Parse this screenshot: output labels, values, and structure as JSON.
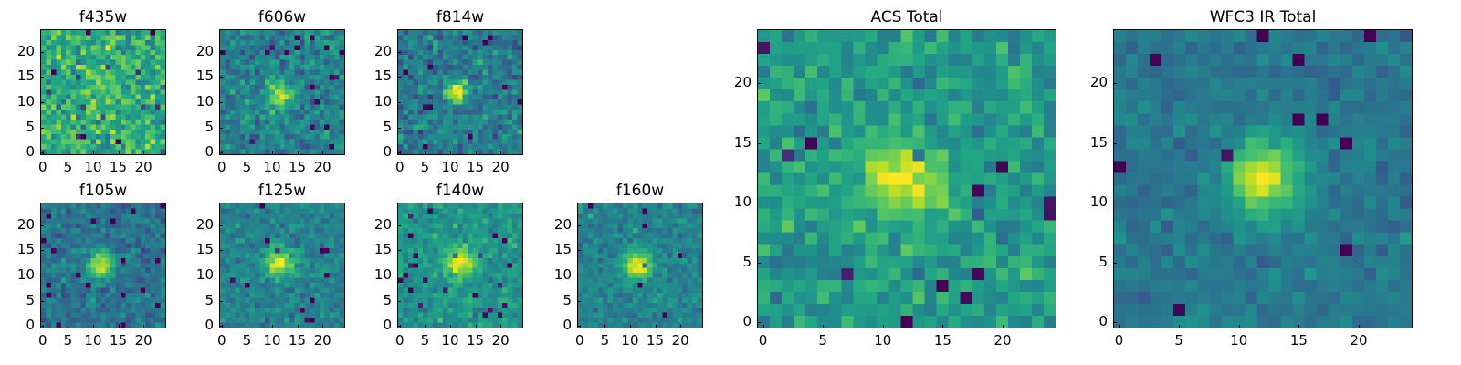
{
  "figure": {
    "colormap": "viridis",
    "small_grid": {
      "row1": [
        {
          "title": "f435w",
          "seed": 11,
          "blob": {
            "cx": 11.5,
            "cy": 11.5,
            "amp": 0.1,
            "sigma": 2.0
          },
          "noise": 0.38,
          "base": 0.62
        },
        {
          "title": "f606w",
          "seed": 23,
          "blob": {
            "cx": 11.5,
            "cy": 11.0,
            "amp": 0.45,
            "sigma": 1.6
          },
          "noise": 0.3,
          "base": 0.45
        },
        {
          "title": "f814w",
          "seed": 37,
          "blob": {
            "cx": 11.5,
            "cy": 12.0,
            "amp": 0.65,
            "sigma": 1.5
          },
          "noise": 0.3,
          "base": 0.42
        }
      ],
      "row2": [
        {
          "title": "f105w",
          "seed": 41,
          "blob": {
            "cx": 11.5,
            "cy": 12.0,
            "amp": 0.55,
            "sigma": 2.0
          },
          "noise": 0.22,
          "base": 0.38
        },
        {
          "title": "f125w",
          "seed": 53,
          "blob": {
            "cx": 11.5,
            "cy": 12.5,
            "amp": 0.5,
            "sigma": 2.0
          },
          "noise": 0.22,
          "base": 0.45
        },
        {
          "title": "f140w",
          "seed": 67,
          "blob": {
            "cx": 12.0,
            "cy": 12.5,
            "amp": 0.45,
            "sigma": 2.2
          },
          "noise": 0.22,
          "base": 0.52
        },
        {
          "title": "f160w",
          "seed": 79,
          "blob": {
            "cx": 11.5,
            "cy": 12.0,
            "amp": 0.55,
            "sigma": 2.0
          },
          "noise": 0.2,
          "base": 0.45
        }
      ],
      "x_ticks": [
        "0",
        "5",
        "10",
        "15",
        "20"
      ],
      "y_ticks": [
        "0",
        "5",
        "10",
        "15",
        "20"
      ]
    },
    "large_panels": [
      {
        "title": "ACS Total",
        "seed": 91,
        "blob": {
          "cx": 11.5,
          "cy": 12.0,
          "amp": 0.45,
          "sigma": 2.2
        },
        "noise": 0.28,
        "base": 0.55
      },
      {
        "title": "WFC3 IR Total",
        "seed": 103,
        "blob": {
          "cx": 12.0,
          "cy": 12.0,
          "amp": 0.55,
          "sigma": 2.3
        },
        "noise": 0.16,
        "base": 0.4
      }
    ],
    "large_x_ticks": [
      "0",
      "5",
      "10",
      "15",
      "20"
    ],
    "large_y_ticks": [
      "0",
      "5",
      "10",
      "15",
      "20"
    ],
    "grid_size": 25
  }
}
